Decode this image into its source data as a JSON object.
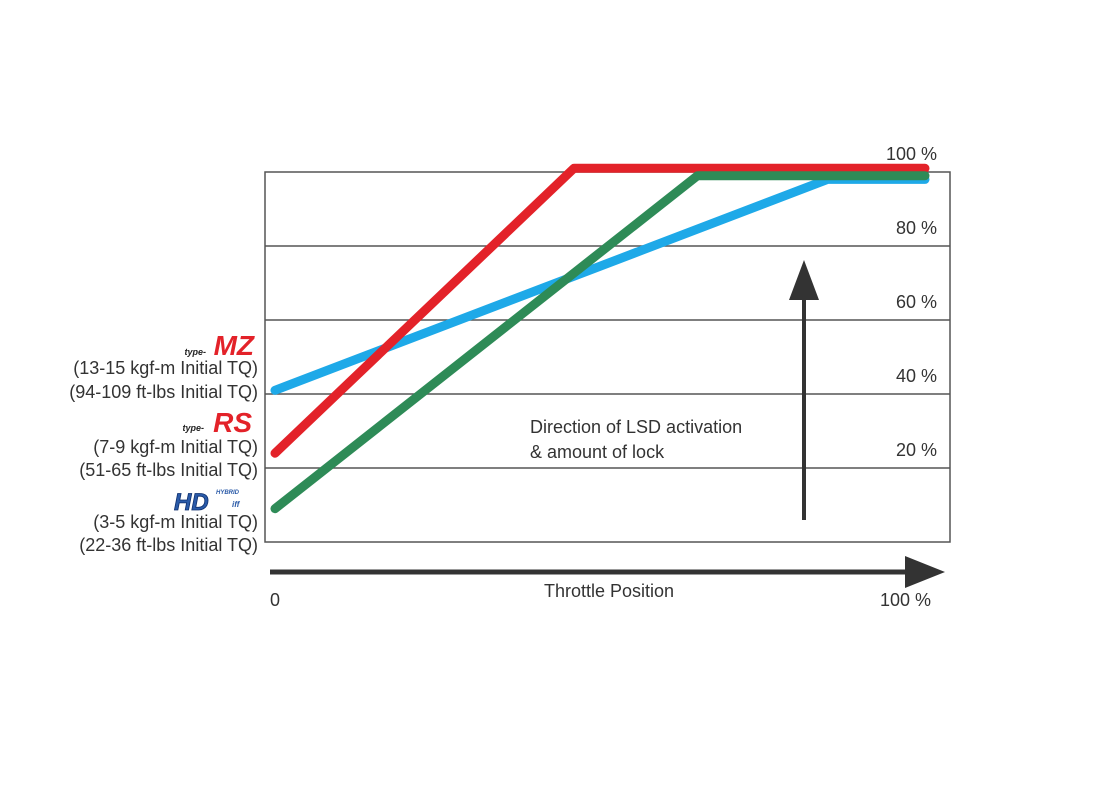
{
  "chart_data": {
    "type": "line",
    "xlabel": "Throttle Position",
    "x_ticks": [
      "0",
      "100 %"
    ],
    "y_ticks": [
      "20 %",
      "40 %",
      "60 %",
      "80 %",
      "100 %"
    ],
    "xlim": [
      0,
      100
    ],
    "ylim": [
      0,
      100
    ],
    "grid": true,
    "annotation": {
      "line1": "Direction of LSD activation",
      "line2": "& amount of lock"
    },
    "series": [
      {
        "name": "type-MZ",
        "color": "#1ea9e8",
        "desc": [
          "(13-15 kgf-m Initial TQ)",
          "(94-109 ft-lbs Initial TQ)"
        ],
        "points": [
          [
            0,
            41
          ],
          [
            85,
            98
          ],
          [
            100,
            98
          ]
        ]
      },
      {
        "name": "type-RS",
        "color": "#e32229",
        "desc": [
          "(7-9 kgf-m Initial TQ)",
          "(51-65 ft-lbs Initial TQ)"
        ],
        "points": [
          [
            0,
            24
          ],
          [
            46,
            101
          ],
          [
            100,
            101
          ]
        ]
      },
      {
        "name": "Hybrid HD-Diff",
        "color": "#2e8b57",
        "desc": [
          "(3-5 kgf-m Initial TQ)",
          "(22-36 ft-lbs Initial TQ)"
        ],
        "points": [
          [
            0,
            9
          ],
          [
            65,
            99
          ],
          [
            100,
            99
          ]
        ]
      }
    ]
  },
  "brands": {
    "mz_prefix": "type-",
    "mz_main": "MZ",
    "rs_prefix": "type-",
    "rs_main": "RS",
    "hd_top": "HYBRID",
    "hd_main": "HD",
    "hd_sub": "iff"
  }
}
